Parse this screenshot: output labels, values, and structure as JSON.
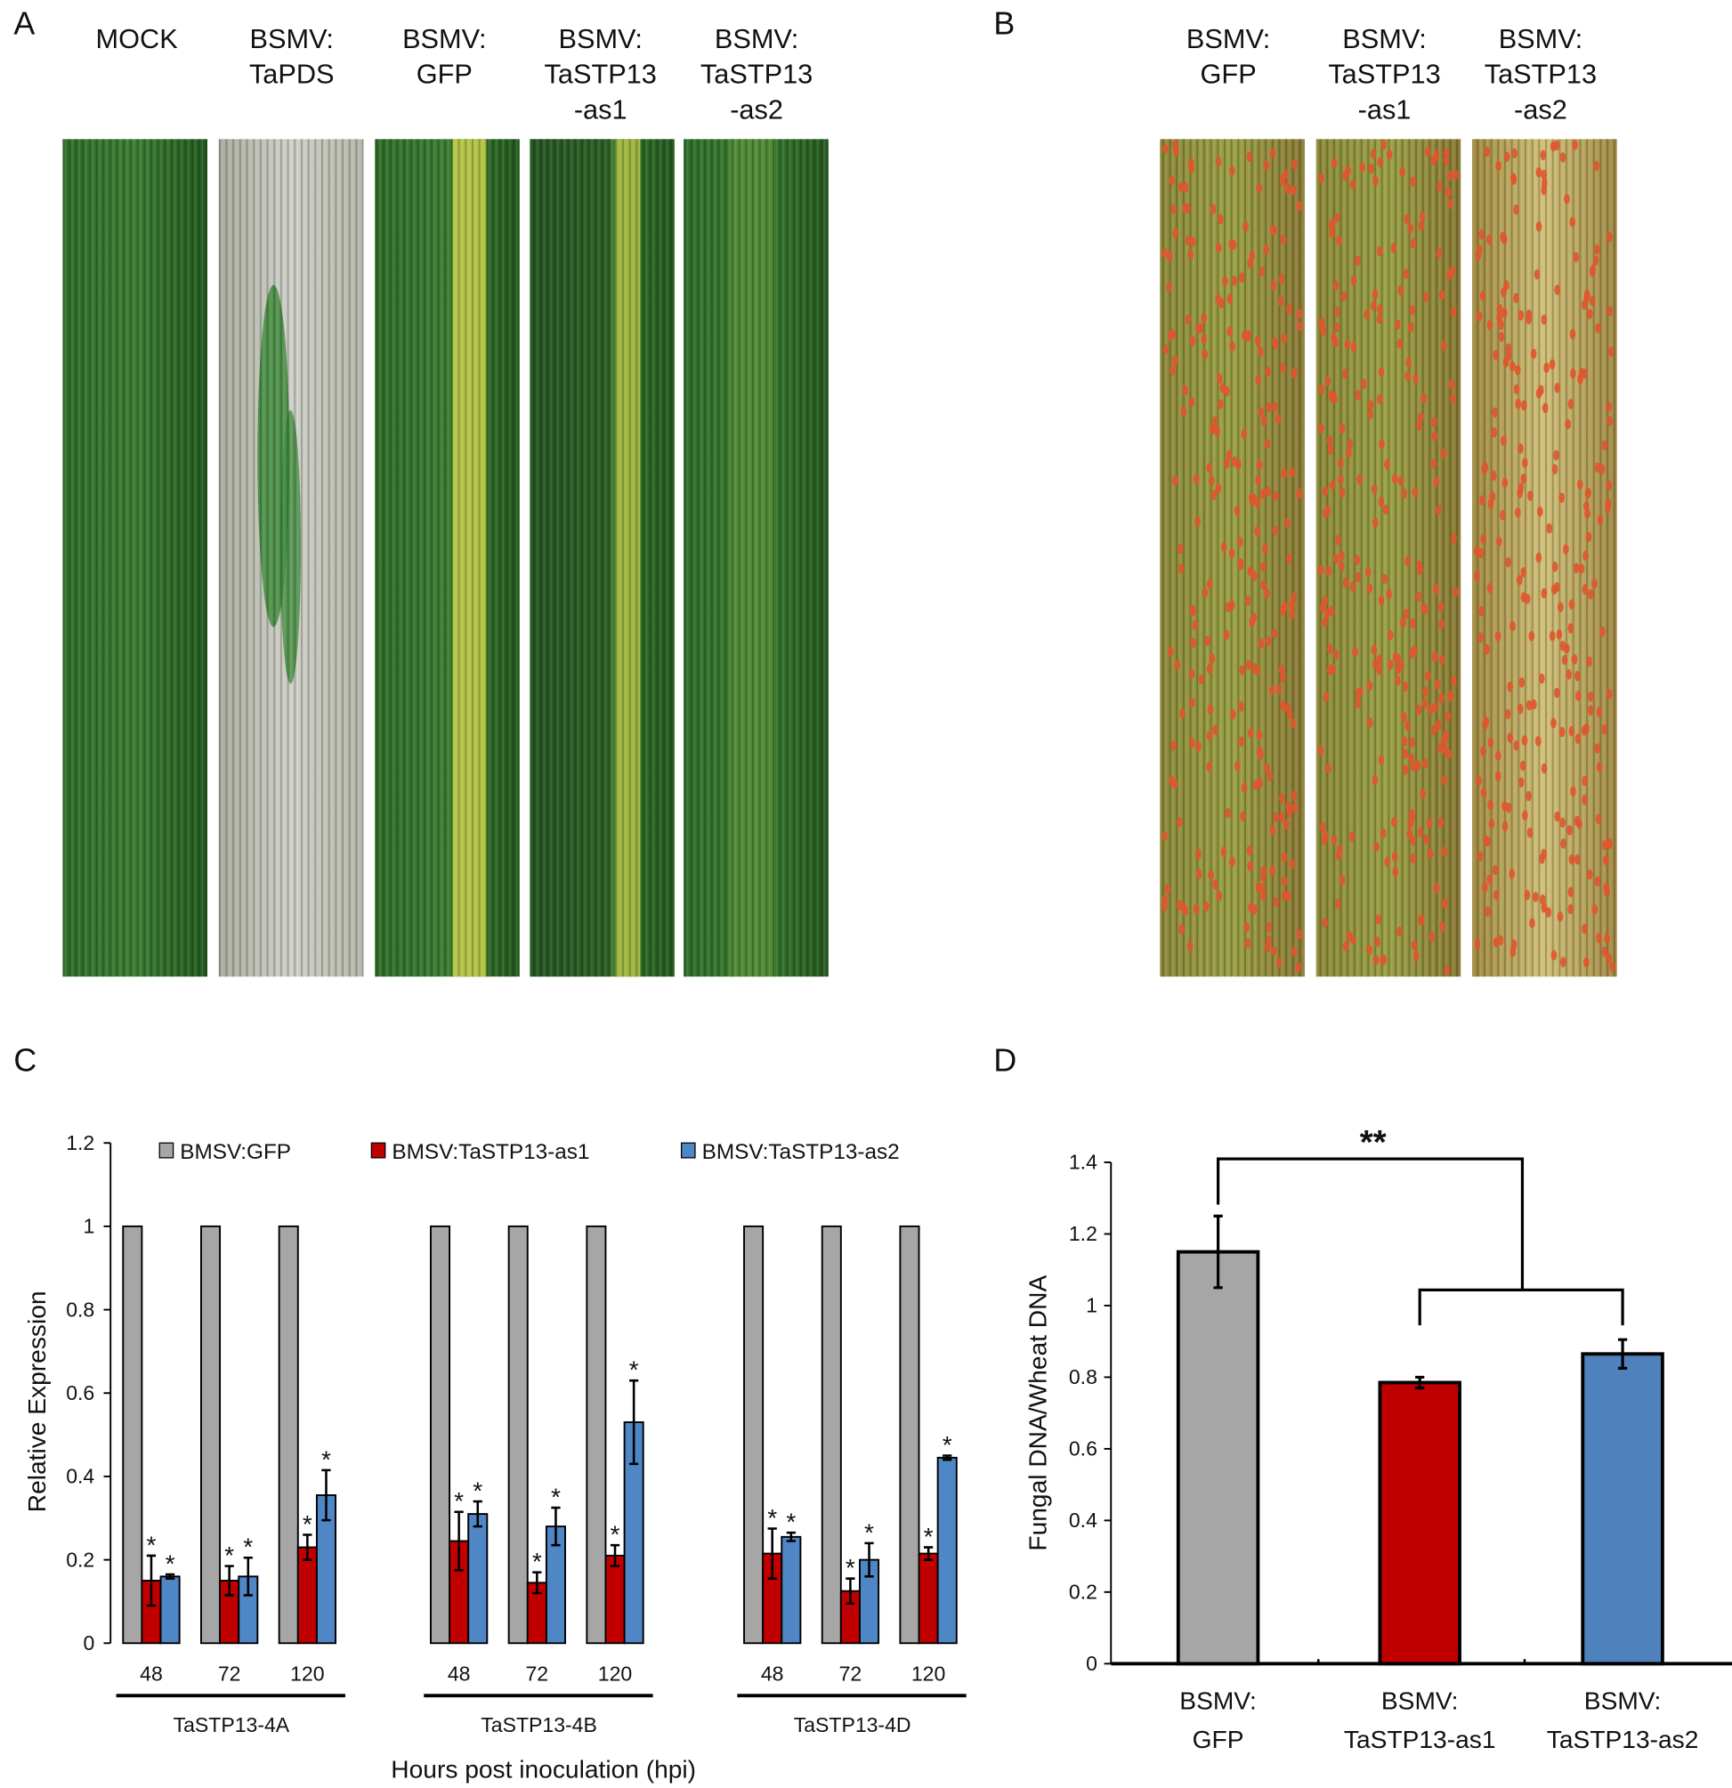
{
  "panels": {
    "A": {
      "label": "A",
      "columns": [
        [
          "MOCK"
        ],
        [
          "BSMV:",
          "TaPDS"
        ],
        [
          "BSMV:",
          "GFP"
        ],
        [
          "BSMV:",
          "TaSTP13",
          "-as1"
        ],
        [
          "BSMV:",
          "TaSTP13",
          "-as2"
        ]
      ]
    },
    "B": {
      "label": "B",
      "columns": [
        [
          "BSMV:",
          "GFP"
        ],
        [
          "BSMV:",
          "TaSTP13",
          "-as1"
        ],
        [
          "BSMV:",
          "TaSTP13",
          "-as2"
        ]
      ]
    },
    "C": {
      "label": "C"
    },
    "D": {
      "label": "D"
    }
  },
  "chart_data": [
    {
      "type": "bar",
      "ylabel": "Relative Expression",
      "xlabel": "Hours post inoculation (hpi)",
      "categories": [
        "48",
        "72",
        "120",
        "48",
        "72",
        "120",
        "48",
        "72",
        "120"
      ],
      "group_labels": [
        "TaSTP13-4A",
        "TaSTP13-4B",
        "TaSTP13-4D"
      ],
      "series": [
        {
          "name": "BMSV:GFP",
          "color": "#a6a6a6",
          "values": [
            1,
            1,
            1,
            1,
            1,
            1,
            1,
            1,
            1
          ]
        },
        {
          "name": "BMSV:TaSTP13-as1",
          "color": "#c00000",
          "values": [
            0.15,
            0.15,
            0.23,
            0.245,
            0.145,
            0.21,
            0.215,
            0.125,
            0.215
          ],
          "errors": [
            0.06,
            0.035,
            0.03,
            0.07,
            0.025,
            0.025,
            0.06,
            0.03,
            0.015
          ],
          "annotations": [
            "*",
            "*",
            "*",
            "*",
            "*",
            "*",
            "*",
            "*",
            "*"
          ]
        },
        {
          "name": "BMSV:TaSTP13-as2",
          "color": "#4f86c6",
          "values": [
            0.16,
            0.16,
            0.355,
            0.31,
            0.28,
            0.53,
            0.255,
            0.2,
            0.445
          ],
          "errors": [
            0.005,
            0.045,
            0.06,
            0.03,
            0.045,
            0.1,
            0.01,
            0.04,
            0.005
          ],
          "annotations": [
            "*",
            "*",
            "*",
            "*",
            "*",
            "*",
            "*",
            "*",
            "*"
          ]
        }
      ],
      "ylim": [
        0,
        1.2
      ],
      "yticks": [
        0,
        0.2,
        0.4,
        0.6,
        0.8,
        1,
        1.2
      ],
      "legend": "top"
    },
    {
      "type": "bar",
      "ylabel": "Fungal DNA/Wheat DNA",
      "categories": [
        [
          "BSMV:",
          "GFP"
        ],
        [
          "BSMV:",
          "TaSTP13-as1"
        ],
        [
          "BSMV:",
          "TaSTP13-as2"
        ]
      ],
      "values": [
        1.15,
        0.785,
        0.865
      ],
      "errors": [
        0.1,
        0.015,
        0.04
      ],
      "colors": [
        "#a6a6a6",
        "#c00000",
        "#4f81bd"
      ],
      "annotation": "**",
      "ylim": [
        0,
        1.4
      ],
      "yticks": [
        0,
        0.2,
        0.4,
        0.6,
        0.8,
        1,
        1.2,
        1.4
      ]
    }
  ]
}
